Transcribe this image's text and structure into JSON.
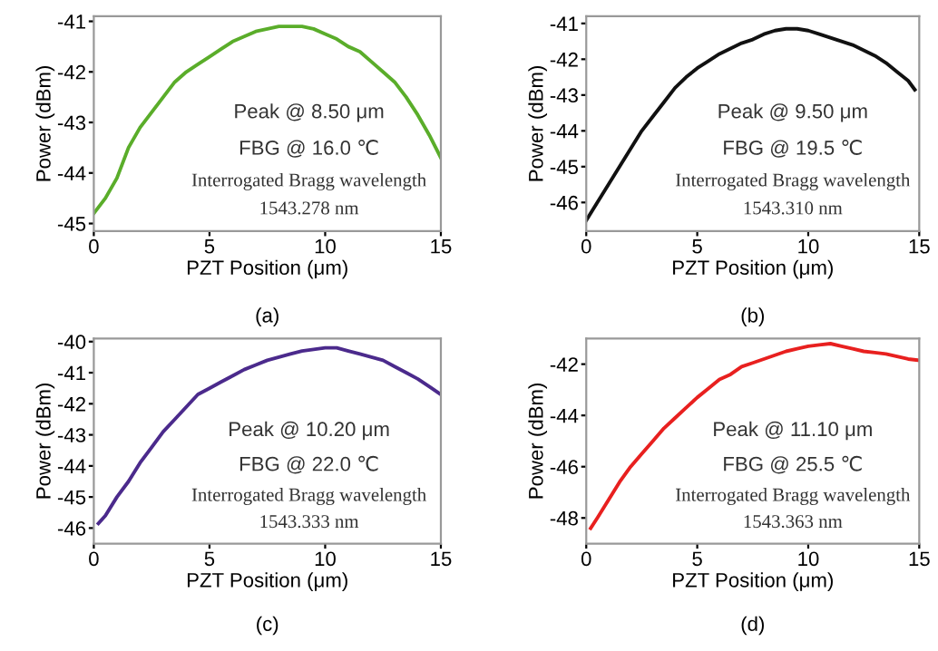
{
  "chart_data": [
    {
      "type": "line",
      "xlabel": "PZT Position (μm)",
      "ylabel": "Power (dBm)",
      "xlim": [
        0,
        15
      ],
      "xticks": [
        0,
        5,
        10,
        15
      ],
      "ylim": [
        -45.15,
        -40.9
      ],
      "yticks": [
        -45,
        -44,
        -43,
        -42,
        -41
      ],
      "grid": false,
      "annotations": [
        "Peak @ 8.50 μm",
        "FBG @ 16.0 ℃",
        "Interrogated Bragg wavelength",
        "1543.278 nm",
        "(a)"
      ],
      "series": [
        {
          "color": "#5aad2a",
          "x": [
            0,
            0.5,
            1,
            1.5,
            2,
            2.5,
            3,
            3.5,
            4,
            4.5,
            5,
            5.5,
            6,
            6.5,
            7,
            7.5,
            8,
            8.5,
            9,
            9.5,
            10,
            10.5,
            11,
            11.5,
            12,
            12.5,
            13,
            13.5,
            14,
            14.5,
            15
          ],
          "values": [
            -44.8,
            -44.5,
            -44.1,
            -43.5,
            -43.1,
            -42.8,
            -42.5,
            -42.2,
            -42.0,
            -41.85,
            -41.7,
            -41.55,
            -41.4,
            -41.3,
            -41.2,
            -41.15,
            -41.1,
            -41.1,
            -41.1,
            -41.15,
            -41.25,
            -41.35,
            -41.5,
            -41.6,
            -41.8,
            -42.0,
            -42.2,
            -42.5,
            -42.85,
            -43.25,
            -43.7
          ]
        }
      ]
    },
    {
      "type": "line",
      "xlabel": "PZT Position (μm)",
      "ylabel": "Power (dBm)",
      "xlim": [
        0,
        15
      ],
      "xticks": [
        0,
        5,
        10,
        15
      ],
      "ylim": [
        -46.8,
        -40.8
      ],
      "yticks": [
        -46,
        -45,
        -44,
        -43,
        -42,
        -41
      ],
      "grid": false,
      "annotations": [
        "Peak @ 9.50 μm",
        "FBG @ 19.5 ℃",
        "Interrogated Bragg wavelength",
        "1543.310 nm",
        "(b)"
      ],
      "series": [
        {
          "color": "#111111",
          "x": [
            0,
            0.5,
            1,
            1.5,
            2,
            2.5,
            3,
            3.5,
            4,
            4.5,
            5,
            5.5,
            6,
            6.5,
            7,
            7.5,
            8,
            8.5,
            9,
            9.5,
            10,
            10.5,
            11,
            11.5,
            12,
            12.5,
            13,
            13.5,
            14,
            14.5,
            14.8
          ],
          "values": [
            -46.5,
            -46.0,
            -45.5,
            -45.0,
            -44.5,
            -44.0,
            -43.6,
            -43.2,
            -42.8,
            -42.5,
            -42.25,
            -42.05,
            -41.85,
            -41.7,
            -41.55,
            -41.45,
            -41.3,
            -41.2,
            -41.15,
            -41.15,
            -41.2,
            -41.3,
            -41.4,
            -41.5,
            -41.6,
            -41.75,
            -41.9,
            -42.1,
            -42.35,
            -42.6,
            -42.85
          ]
        }
      ]
    },
    {
      "type": "line",
      "xlabel": "PZT Position (μm)",
      "ylabel": "Power (dBm)",
      "xlim": [
        0,
        15
      ],
      "xticks": [
        0,
        5,
        10,
        15
      ],
      "ylim": [
        -46.5,
        -39.9
      ],
      "yticks": [
        -46,
        -45,
        -44,
        -43,
        -42,
        -41,
        -40
      ],
      "grid": false,
      "annotations": [
        "Peak @ 10.20 μm",
        "FBG @ 22.0 ℃",
        "Interrogated Bragg wavelength",
        "1543.333 nm",
        "(c)"
      ],
      "series": [
        {
          "color": "#4b2a8c",
          "x": [
            0.2,
            0.5,
            1,
            1.5,
            2,
            2.5,
            3,
            3.5,
            4,
            4.5,
            5,
            5.5,
            6,
            6.5,
            7,
            7.5,
            8,
            8.5,
            9,
            9.5,
            10,
            10.5,
            11,
            11.5,
            12,
            12.5,
            13,
            13.5,
            14,
            14.5,
            15
          ],
          "values": [
            -45.85,
            -45.6,
            -45.0,
            -44.5,
            -43.9,
            -43.4,
            -42.9,
            -42.5,
            -42.1,
            -41.7,
            -41.5,
            -41.3,
            -41.1,
            -40.9,
            -40.75,
            -40.6,
            -40.5,
            -40.4,
            -40.3,
            -40.25,
            -40.2,
            -40.2,
            -40.3,
            -40.4,
            -40.5,
            -40.6,
            -40.8,
            -41.0,
            -41.2,
            -41.45,
            -41.7
          ]
        }
      ]
    },
    {
      "type": "line",
      "xlabel": "PZT Position (μm)",
      "ylabel": "Power (dBm)",
      "xlim": [
        0,
        15
      ],
      "xticks": [
        0,
        5,
        10,
        15
      ],
      "ylim": [
        -49,
        -41
      ],
      "yticks": [
        -48,
        -46,
        -44,
        -42
      ],
      "grid": false,
      "annotations": [
        "Peak @ 11.10 μm",
        "FBG @ 25.5 ℃",
        "Interrogated Bragg wavelength",
        "1543.363 nm",
        "(d)"
      ],
      "series": [
        {
          "color": "#e8201f",
          "x": [
            0.2,
            0.5,
            1,
            1.5,
            2,
            2.5,
            3,
            3.5,
            4,
            4.5,
            5,
            5.5,
            6,
            6.5,
            7,
            7.5,
            8,
            8.5,
            9,
            9.5,
            10,
            10.5,
            11,
            11.5,
            12,
            12.5,
            13,
            13.5,
            14,
            14.5,
            15
          ],
          "values": [
            -48.4,
            -48.0,
            -47.3,
            -46.6,
            -46.0,
            -45.5,
            -45.0,
            -44.5,
            -44.1,
            -43.7,
            -43.3,
            -42.95,
            -42.6,
            -42.4,
            -42.1,
            -41.95,
            -41.8,
            -41.65,
            -41.5,
            -41.4,
            -41.3,
            -41.25,
            -41.2,
            -41.3,
            -41.4,
            -41.5,
            -41.55,
            -41.6,
            -41.7,
            -41.8,
            -41.85
          ]
        }
      ]
    }
  ]
}
